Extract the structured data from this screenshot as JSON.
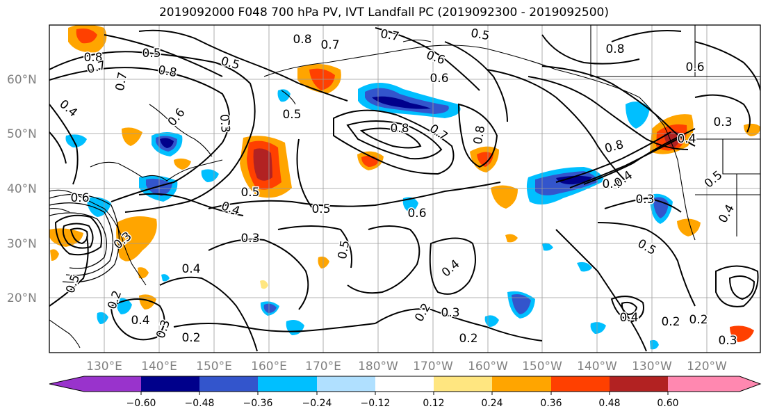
{
  "title": "2019092000 F048 700 hPa PV, IVT Landfall PC (2019092300 - 2019092500)",
  "lat_labels": [
    "60°N",
    "50°N",
    "40°N",
    "30°N",
    "20°N"
  ],
  "lon_labels": [
    "130°E",
    "140°E",
    "150°E",
    "160°E",
    "170°E",
    "180°W",
    "170°W",
    "160°W",
    "150°W",
    "140°W",
    "130°W",
    "120°W"
  ],
  "colorbar": {
    "ticks": [
      "−0.60",
      "−0.48",
      "−0.36",
      "−0.24",
      "−0.12",
      "0.12",
      "0.24",
      "0.36",
      "0.48",
      "0.60"
    ],
    "colors": [
      "#9933cc",
      "#00008b",
      "#3355cc",
      "#00bfff",
      "#b0e0ff",
      "#ffffff",
      "#ffe680",
      "#ffa500",
      "#ff4000",
      "#b22222",
      "#ff88b0"
    ]
  },
  "contour_labels": [
    {
      "text": "0.5"
    },
    {
      "text": "0.8"
    },
    {
      "text": "0.7"
    },
    {
      "text": "0.5"
    },
    {
      "text": "0.8"
    },
    {
      "text": "0.7"
    },
    {
      "text": "0.6"
    },
    {
      "text": "0.5"
    },
    {
      "text": "0.8"
    },
    {
      "text": "0.7"
    },
    {
      "text": "0.6"
    },
    {
      "text": "0.8"
    },
    {
      "text": "0.7"
    },
    {
      "text": "0.5"
    },
    {
      "text": "0.4"
    },
    {
      "text": "0.6"
    },
    {
      "text": "0.7"
    },
    {
      "text": "0.6"
    },
    {
      "text": "0.8"
    },
    {
      "text": "0.4"
    },
    {
      "text": "0.3"
    },
    {
      "text": "0.5"
    },
    {
      "text": "0.6"
    },
    {
      "text": "0.4"
    },
    {
      "text": "0.5"
    },
    {
      "text": "0.3"
    },
    {
      "text": "0.4"
    },
    {
      "text": "0.2"
    },
    {
      "text": "0.3"
    },
    {
      "text": "0.4"
    },
    {
      "text": "0.2"
    },
    {
      "text": "0.3"
    },
    {
      "text": "0.2"
    },
    {
      "text": "0.3"
    },
    {
      "text": "0.4"
    },
    {
      "text": "0.2"
    },
    {
      "text": "0.3"
    },
    {
      "text": "0.5"
    },
    {
      "text": "0.8"
    },
    {
      "text": "0.4"
    },
    {
      "text": "0.5"
    },
    {
      "text": "0.3"
    },
    {
      "text": "0.2"
    },
    {
      "text": "0.4"
    },
    {
      "text": "0.8"
    },
    {
      "text": "0.6"
    },
    {
      "text": "0.3"
    },
    {
      "text": "0.2"
    },
    {
      "text": "0.5"
    },
    {
      "text": "0.4"
    },
    {
      "text": "0.5"
    },
    {
      "text": "0.4"
    }
  ]
}
